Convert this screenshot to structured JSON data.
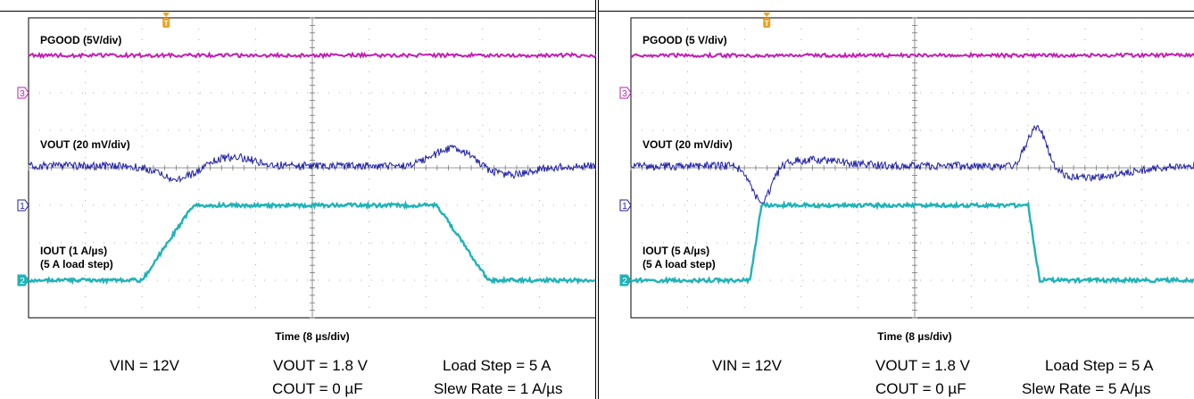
{
  "chart_data": [
    {
      "type": "line",
      "time_label": "Time (8 µs/div)",
      "series": [
        {
          "name": "PGOOD (5V/div)",
          "color": "#c41cb4",
          "channel": "3",
          "level_divs": 4.0
        },
        {
          "name": "VOUT (20 mV/div)",
          "color": "#1e1ea8",
          "channel": "1",
          "level_divs": 1.05,
          "events": [
            {
              "t_div": 2.65,
              "dip_divs": -0.35,
              "overshoot_divs": 0.25
            },
            {
              "t_div": 7.5,
              "overshoot_divs": 0.5,
              "dip_divs": -0.25
            }
          ]
        },
        {
          "name": "IOUT (1 A/µs)",
          "name2": "(5 A load step)",
          "color": "#1fb3b8",
          "channel": "2",
          "low_divs": -1.0,
          "high_divs": 0.0,
          "rise_start_div": 2.0,
          "rise_end_div": 2.9,
          "fall_start_div": 7.2,
          "fall_end_div": 8.1
        }
      ],
      "conditions": {
        "vin": "VIN = 12V",
        "vout": "VOUT = 1.8 V",
        "load": "Load Step = 5 A",
        "cout": "COUT = 0 µF",
        "slew": "Slew Rate = 1 A/µs"
      }
    },
    {
      "type": "line",
      "time_label": "Time (8 µs/div)",
      "series": [
        {
          "name": "PGOOD (5 V/div)",
          "color": "#c41cb4",
          "channel": "3",
          "level_divs": 4.0
        },
        {
          "name": "VOUT (20 mV/div)",
          "color": "#1e1ea8",
          "channel": "1",
          "level_divs": 1.05,
          "events": [
            {
              "t_div": 2.3,
              "dip_divs": -1.0,
              "overshoot_divs": 0.15
            },
            {
              "t_div": 7.15,
              "overshoot_divs": 1.15,
              "dip_divs": -0.3
            }
          ]
        },
        {
          "name": "IOUT (5 A/µs)",
          "name2": "(5 A load step)",
          "color": "#1fb3b8",
          "channel": "2",
          "low_divs": -1.0,
          "high_divs": 0.0,
          "rise_start_div": 2.1,
          "rise_end_div": 2.3,
          "fall_start_div": 7.0,
          "fall_end_div": 7.2
        }
      ],
      "conditions": {
        "vin": "VIN = 12V",
        "vout": "VOUT = 1.8 V",
        "load": "Load Step = 5 A",
        "cout": "COUT = 0 µF",
        "slew": "Slew Rate = 5 A/µs"
      }
    }
  ]
}
